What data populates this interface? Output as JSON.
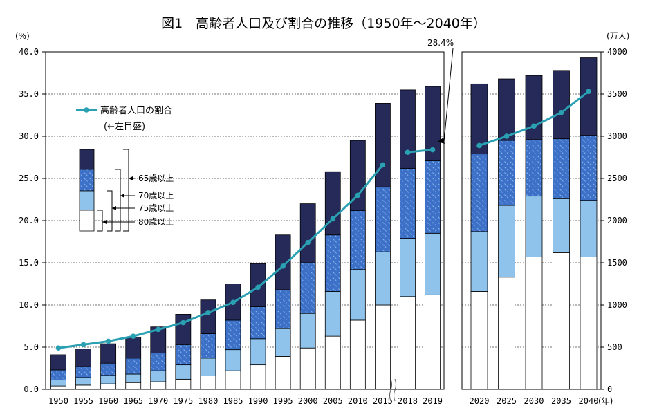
{
  "chart_data": {
    "type": "bar",
    "title": "図1　高齢者人口及び割合の推移（1950年～2040年）",
    "left_axis_unit": "(%)",
    "right_axis_unit": "(万人)",
    "year_unit": "(年)",
    "left_ylim": [
      0,
      40
    ],
    "right_ylim": [
      0,
      4000
    ],
    "left_ticks": [
      "0.0",
      "5.0",
      "10.0",
      "15.0",
      "20.0",
      "25.0",
      "30.0",
      "35.0",
      "40.0"
    ],
    "right_ticks": [
      "0",
      "500",
      "1000",
      "1500",
      "2000",
      "2500",
      "3000",
      "3500",
      "4000"
    ],
    "annotation": "28.4%",
    "legend": {
      "line_label": "高齢者人口の割合",
      "line_sublabel": "(←左目盛)",
      "age_labels": [
        "65歳以上",
        "70歳以上",
        "75歳以上",
        "80歳以上"
      ]
    },
    "colors": {
      "age80plus": "#ffffff",
      "age75_79": "#8fc3eb",
      "age70_74": "#3d71c8",
      "age65_69": "#252a58",
      "line": "#2aa0b3"
    },
    "panels": [
      {
        "categories": [
          "1950",
          "1955",
          "1960",
          "1965",
          "1970",
          "1975",
          "1980",
          "1985",
          "1990",
          "1995",
          "2000",
          "2005",
          "2010",
          "2015",
          "2018",
          "2019"
        ],
        "series": [
          {
            "name": "80歳以上",
            "values": [
              40,
              50,
              65,
              80,
              90,
              120,
              160,
              220,
              290,
              390,
              490,
              630,
              820,
              1000,
              1100,
              1120
            ]
          },
          {
            "name": "75歳以上",
            "values": [
              110,
              140,
              165,
              180,
              220,
              290,
              370,
              470,
              600,
              720,
              900,
              1160,
              1420,
              1630,
              1790,
              1850
            ]
          },
          {
            "name": "70歳以上",
            "values": [
              230,
              270,
              310,
              370,
              430,
              530,
              660,
              820,
              980,
              1180,
              1500,
              1830,
              2120,
              2400,
              2620,
              2710
            ]
          },
          {
            "name": "65歳以上",
            "values": [
              410,
              480,
              540,
              620,
              740,
              890,
              1060,
              1250,
              1490,
              1830,
              2200,
              2580,
              2950,
              3390,
              3550,
              3590
            ]
          }
        ],
        "line_values": [
          4.9,
          5.3,
          5.7,
          6.3,
          7.1,
          7.9,
          9.1,
          10.3,
          12.1,
          14.6,
          17.4,
          20.2,
          23.0,
          26.6,
          28.1,
          28.4
        ]
      },
      {
        "categories": [
          "2020",
          "2025",
          "2030",
          "2035",
          "2040"
        ],
        "series": [
          {
            "name": "80歳以上",
            "values": [
              1160,
              1330,
              1570,
              1620,
              1570
            ]
          },
          {
            "name": "75歳以上",
            "values": [
              1870,
              2180,
              2290,
              2260,
              2240
            ]
          },
          {
            "name": "70歳以上",
            "values": [
              2790,
              2950,
              2960,
              2970,
              3010
            ]
          },
          {
            "name": "65歳以上",
            "values": [
              3620,
              3680,
              3720,
              3780,
              3930
            ]
          }
        ],
        "line_values": [
          28.9,
          30.0,
          31.2,
          32.8,
          35.3
        ]
      }
    ]
  }
}
